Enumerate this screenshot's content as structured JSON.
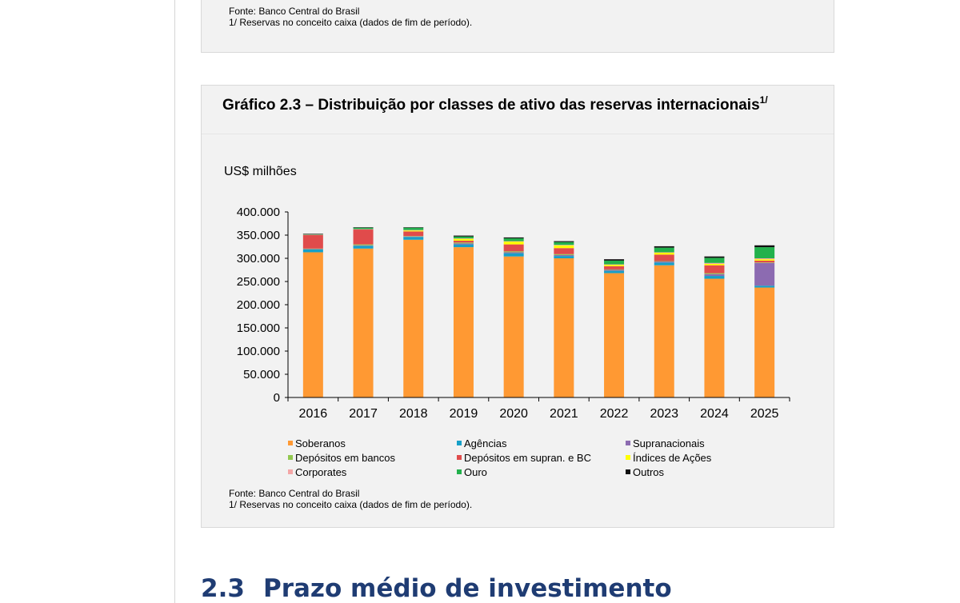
{
  "top_panel": {
    "source": "Fonte: Banco Central do Brasil",
    "note": "1/ Reservas no conceito caixa (dados de fim de período)."
  },
  "chart_panel": {
    "title": "Gráfico 2.3 – Distribuição por classes de ativo das reservas internacionais",
    "title_superscript": "1/",
    "source": "Fonte: Banco Central do Brasil",
    "note": "1/ Reservas no conceito caixa (dados de fim de período)."
  },
  "chart_data": {
    "type": "bar",
    "stacked": true,
    "title": "Gráfico 2.3 – Distribuição por classes de ativo das reservas internacionais",
    "ylabel": "US$ milhões",
    "xlabel": "",
    "ylim": [
      0,
      400000
    ],
    "yticks": [
      0,
      50000,
      100000,
      150000,
      200000,
      250000,
      300000,
      350000,
      400000
    ],
    "ytick_labels": [
      "0",
      "50.000",
      "100.000",
      "150.000",
      "200.000",
      "250.000",
      "300.000",
      "350.000",
      "400.000"
    ],
    "categories": [
      "2016",
      "2017",
      "2018",
      "2019",
      "2020",
      "2021",
      "2022",
      "2023",
      "2024",
      "2025"
    ],
    "grid": false,
    "legend_position": "bottom",
    "series": [
      {
        "name": "Soberanos",
        "color": "#ff9933",
        "values": [
          313000,
          321000,
          340000,
          324000,
          304000,
          300000,
          268000,
          285000,
          256000,
          237000
        ]
      },
      {
        "name": "Agências",
        "color": "#16a0c8",
        "values": [
          6000,
          6000,
          6000,
          6000,
          7000,
          5000,
          5000,
          6000,
          6000,
          4000
        ]
      },
      {
        "name": "Supranacionais",
        "color": "#8c6bb1",
        "values": [
          1000,
          1000,
          1000,
          2000,
          2000,
          2000,
          2000,
          2000,
          4000,
          49000
        ]
      },
      {
        "name": "Depósitos em bancos",
        "color": "#92c84f",
        "values": [
          1000,
          2000,
          1000,
          2000,
          2000,
          2000,
          1000,
          1000,
          2000,
          1000
        ]
      },
      {
        "name": "Depósitos em supran. e BC",
        "color": "#e04b4b",
        "values": [
          29000,
          32000,
          10000,
          4000,
          15000,
          13000,
          7000,
          14000,
          17000,
          4000
        ]
      },
      {
        "name": "Índices de Ações",
        "color": "#ffff00",
        "values": [
          0,
          0,
          2000,
          4000,
          6000,
          6000,
          3000,
          4000,
          3000,
          3000
        ]
      },
      {
        "name": "Corporates",
        "color": "#f4a6a6",
        "values": [
          1000,
          1000,
          1000,
          1000,
          1000,
          1000,
          1000,
          1000,
          2000,
          2000
        ]
      },
      {
        "name": "Ouro",
        "color": "#22b14c",
        "values": [
          1000,
          3000,
          5000,
          4000,
          6000,
          6000,
          8000,
          10000,
          11000,
          24000
        ]
      },
      {
        "name": "Outros",
        "color": "#111111",
        "values": [
          1000,
          1000,
          1000,
          2000,
          2000,
          2000,
          3000,
          3000,
          3000,
          4000
        ]
      }
    ]
  },
  "legend": {
    "items": [
      {
        "label": "Soberanos",
        "color": "#ff9933"
      },
      {
        "label": "Agências",
        "color": "#16a0c8"
      },
      {
        "label": "Supranacionais",
        "color": "#8c6bb1"
      },
      {
        "label": "Depósitos em bancos",
        "color": "#92c84f"
      },
      {
        "label": "Depósitos em supran. e BC",
        "color": "#e04b4b"
      },
      {
        "label": "Índices de Ações",
        "color": "#ffff00"
      },
      {
        "label": "Corporates",
        "color": "#f4a6a6"
      },
      {
        "label": "Ouro",
        "color": "#22b14c"
      },
      {
        "label": "Outros",
        "color": "#111111"
      }
    ]
  },
  "section": {
    "number": "2.3",
    "title": "Prazo médio de investimento",
    "color": "#1f3c73"
  }
}
